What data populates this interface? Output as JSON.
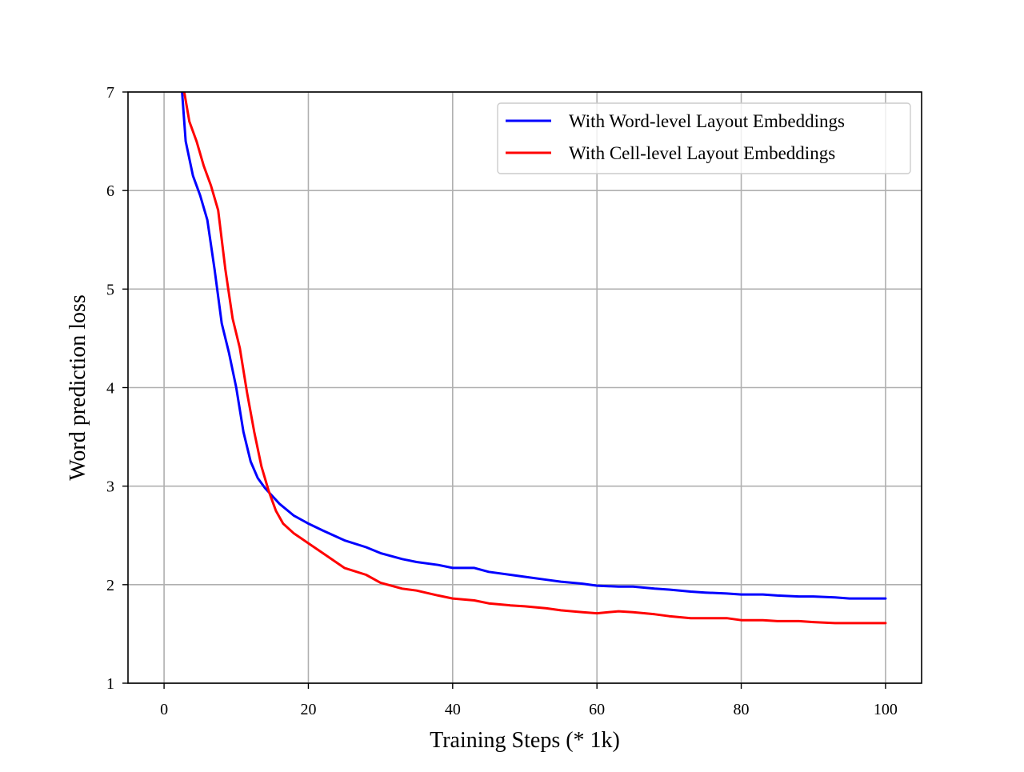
{
  "chart_data": {
    "type": "line",
    "title": "",
    "xlabel": "Training Steps (* 1k)",
    "ylabel": "Word prediction loss",
    "xlim": [
      -5,
      105
    ],
    "ylim": [
      1,
      7
    ],
    "xticks": [
      0,
      20,
      40,
      60,
      80,
      100
    ],
    "yticks": [
      1,
      2,
      3,
      4,
      5,
      6,
      7
    ],
    "grid": true,
    "legend_position": "top-right",
    "series": [
      {
        "name": "With Word-level Layout Embeddings",
        "color": "#0000ff",
        "x": [
          2.5,
          3,
          4,
          5,
          6,
          7,
          8,
          9,
          10,
          11,
          12,
          13,
          14,
          15,
          16,
          18,
          20,
          22,
          25,
          28,
          30,
          33,
          35,
          38,
          40,
          43,
          45,
          48,
          50,
          53,
          55,
          58,
          60,
          63,
          65,
          68,
          70,
          73,
          75,
          78,
          80,
          83,
          85,
          88,
          90,
          93,
          95,
          98,
          100
        ],
        "y": [
          7.0,
          6.5,
          6.15,
          5.95,
          5.7,
          5.2,
          4.65,
          4.35,
          4.0,
          3.55,
          3.25,
          3.08,
          2.98,
          2.9,
          2.82,
          2.7,
          2.62,
          2.55,
          2.45,
          2.38,
          2.32,
          2.26,
          2.23,
          2.2,
          2.17,
          2.17,
          2.13,
          2.1,
          2.08,
          2.05,
          2.03,
          2.01,
          1.99,
          1.98,
          1.98,
          1.96,
          1.95,
          1.93,
          1.92,
          1.91,
          1.9,
          1.9,
          1.89,
          1.88,
          1.88,
          1.87,
          1.86,
          1.86,
          1.86
        ]
      },
      {
        "name": "With Cell-level Layout Embeddings",
        "color": "#ff0000",
        "x": [
          2.8,
          3.5,
          4.5,
          5.5,
          6.5,
          7.5,
          8.5,
          9.5,
          10.5,
          11.5,
          12.5,
          13.5,
          14.5,
          15.5,
          16.5,
          18,
          20,
          22,
          25,
          28,
          30,
          33,
          35,
          38,
          40,
          43,
          45,
          48,
          50,
          53,
          55,
          58,
          60,
          63,
          65,
          68,
          70,
          73,
          75,
          78,
          80,
          83,
          85,
          88,
          90,
          93,
          95,
          98,
          100
        ],
        "y": [
          7.0,
          6.7,
          6.5,
          6.25,
          6.05,
          5.8,
          5.2,
          4.7,
          4.4,
          3.95,
          3.55,
          3.2,
          2.95,
          2.75,
          2.62,
          2.52,
          2.42,
          2.32,
          2.17,
          2.1,
          2.02,
          1.96,
          1.94,
          1.89,
          1.86,
          1.84,
          1.81,
          1.79,
          1.78,
          1.76,
          1.74,
          1.72,
          1.71,
          1.73,
          1.72,
          1.7,
          1.68,
          1.66,
          1.66,
          1.66,
          1.64,
          1.64,
          1.63,
          1.63,
          1.62,
          1.61,
          1.61,
          1.61,
          1.61
        ]
      }
    ]
  }
}
